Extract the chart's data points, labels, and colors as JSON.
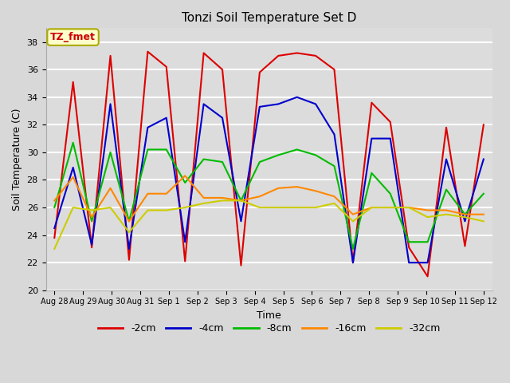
{
  "title": "Tonzi Soil Temperature Set D",
  "xlabel": "Time",
  "ylabel": "Soil Temperature (C)",
  "ylim": [
    20,
    39
  ],
  "yticks": [
    20,
    22,
    24,
    26,
    28,
    30,
    32,
    34,
    36,
    38
  ],
  "fig_bg": "#d8d8d8",
  "plot_bg": "#dcdcdc",
  "annotation_text": "TZ_fmet",
  "annotation_color": "#cc0000",
  "annotation_bg": "#ffffcc",
  "annotation_border": "#aaaa00",
  "x_labels": [
    "Aug 28",
    "Aug 29",
    "Aug 30",
    "Aug 31",
    "Sep 1",
    "Sep 2",
    "Sep 3",
    "Sep 4",
    "Sep 5",
    "Sep 6",
    "Sep 7",
    "Sep 8",
    "Sep 9",
    "Sep 10",
    "Sep 11",
    "Sep 12"
  ],
  "series": {
    "-2cm": {
      "color": "#dd0000",
      "values": [
        23.8,
        35.1,
        23.1,
        37.0,
        22.2,
        37.3,
        36.2,
        22.1,
        37.2,
        36.0,
        21.8,
        35.8,
        37.0,
        37.2,
        37.0,
        36.0,
        22.0,
        33.6,
        32.2,
        23.1,
        21.0,
        31.8,
        23.2,
        32.0
      ]
    },
    "-4cm": {
      "color": "#0000cc",
      "values": [
        24.5,
        28.9,
        23.3,
        33.5,
        23.0,
        31.8,
        32.5,
        23.5,
        33.5,
        32.5,
        25.0,
        33.3,
        33.5,
        34.0,
        33.5,
        31.3,
        22.0,
        31.0,
        31.0,
        22.0,
        22.0,
        29.5,
        25.0,
        29.5
      ]
    },
    "-8cm": {
      "color": "#00bb00",
      "values": [
        26.0,
        30.7,
        25.0,
        30.0,
        25.0,
        30.2,
        30.2,
        27.8,
        29.5,
        29.3,
        26.5,
        29.3,
        29.8,
        30.2,
        29.8,
        29.0,
        23.0,
        28.5,
        27.0,
        23.5,
        23.5,
        27.3,
        25.5,
        27.0
      ]
    },
    "-16cm": {
      "color": "#ff8800",
      "values": [
        26.5,
        28.2,
        25.3,
        27.4,
        25.0,
        27.0,
        27.0,
        28.3,
        26.7,
        26.7,
        26.5,
        26.8,
        27.4,
        27.5,
        27.2,
        26.8,
        25.5,
        26.0,
        26.0,
        26.0,
        25.8,
        25.8,
        25.5,
        25.5
      ]
    },
    "-32cm": {
      "color": "#cccc00",
      "values": [
        23.0,
        26.0,
        25.8,
        26.0,
        24.2,
        25.8,
        25.8,
        26.0,
        26.3,
        26.5,
        26.5,
        26.0,
        26.0,
        26.0,
        26.0,
        26.3,
        25.0,
        26.0,
        26.0,
        26.0,
        25.3,
        25.5,
        25.3,
        25.0
      ]
    }
  }
}
